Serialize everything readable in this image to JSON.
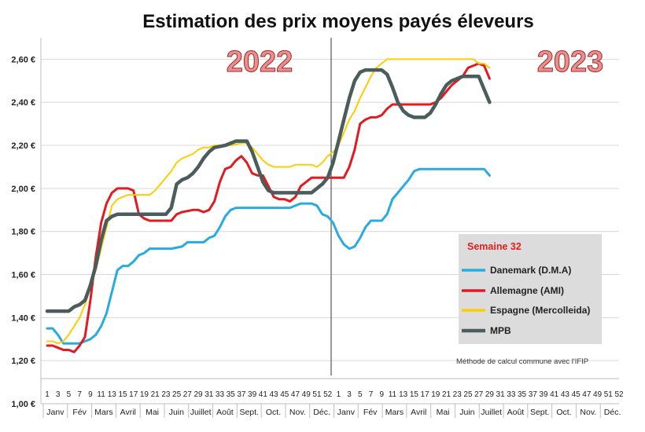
{
  "chart_data": {
    "type": "line",
    "title": "Estimation des prix moyens payés éleveurs",
    "year_labels": [
      "2022",
      "2023"
    ],
    "y_ticks": [
      "1,00 €",
      "1,20 €",
      "1,40 €",
      "1,60 €",
      "1,80 €",
      "2,00 €",
      "2,20 €",
      "2,40 €",
      "2,60 €"
    ],
    "ylim": [
      1.0,
      2.7
    ],
    "x_ticks": [
      "1",
      "3",
      "5",
      "7",
      "9",
      "11",
      "13",
      "15",
      "17",
      "19",
      "21",
      "23",
      "25",
      "27",
      "29",
      "31",
      "33",
      "35",
      "37",
      "39",
      "41",
      "43",
      "45",
      "47",
      "49",
      "51",
      "52",
      "1",
      "3",
      "5",
      "7",
      "9",
      "11",
      "13",
      "15",
      "17",
      "19",
      "21",
      "23",
      "25",
      "27",
      "29",
      "31",
      "33",
      "35",
      "37",
      "39",
      "41",
      "43",
      "45",
      "47",
      "49",
      "51",
      "52"
    ],
    "months": [
      "Janv",
      "Fév",
      "Mars",
      "Avril",
      "Mai",
      "Juin",
      "Juillet",
      "Août",
      "Sept.",
      "Oct.",
      "Nov.",
      "Déc.",
      "Janv",
      "Fév",
      "Mars",
      "Avril",
      "Mai",
      "Juin",
      "Juillet",
      "Août",
      "Sept.",
      "Oct.",
      "Nov.",
      "Déc."
    ],
    "legend": {
      "title": "Semaine 32",
      "items": [
        "Danemark (D.M.A)",
        "Allemagne (AMI)",
        "Espagne (Mercolleida)",
        "MPB"
      ]
    },
    "note": "Méthode de calcul commune avec l'IFIP",
    "series": [
      {
        "name": "Danemark (D.M.A)",
        "color": "#29abe2",
        "points": [
          [
            1,
            1.35
          ],
          [
            2,
            1.35
          ],
          [
            3,
            1.32
          ],
          [
            4,
            1.28
          ],
          [
            5,
            1.28
          ],
          [
            6,
            1.28
          ],
          [
            7,
            1.28
          ],
          [
            8,
            1.29
          ],
          [
            9,
            1.3
          ],
          [
            10,
            1.32
          ],
          [
            11,
            1.36
          ],
          [
            12,
            1.42
          ],
          [
            13,
            1.52
          ],
          [
            14,
            1.62
          ],
          [
            15,
            1.64
          ],
          [
            16,
            1.64
          ],
          [
            17,
            1.66
          ],
          [
            18,
            1.69
          ],
          [
            19,
            1.7
          ],
          [
            20,
            1.72
          ],
          [
            22,
            1.72
          ],
          [
            24,
            1.72
          ],
          [
            26,
            1.73
          ],
          [
            27,
            1.75
          ],
          [
            30,
            1.75
          ],
          [
            31,
            1.77
          ],
          [
            32,
            1.78
          ],
          [
            33,
            1.82
          ],
          [
            34,
            1.87
          ],
          [
            35,
            1.9
          ],
          [
            36,
            1.91
          ],
          [
            38,
            1.91
          ],
          [
            40,
            1.91
          ],
          [
            42,
            1.91
          ],
          [
            44,
            1.91
          ],
          [
            46,
            1.91
          ],
          [
            47,
            1.92
          ],
          [
            48,
            1.93
          ],
          [
            50,
            1.93
          ],
          [
            51,
            1.92
          ],
          [
            52,
            1.88
          ],
          [
            53,
            1.87
          ],
          [
            54,
            1.84
          ],
          [
            55,
            1.78
          ],
          [
            56,
            1.74
          ],
          [
            57,
            1.72
          ],
          [
            58,
            1.73
          ],
          [
            59,
            1.77
          ],
          [
            60,
            1.82
          ],
          [
            61,
            1.85
          ],
          [
            63,
            1.85
          ],
          [
            64,
            1.88
          ],
          [
            65,
            1.95
          ],
          [
            66,
            1.98
          ],
          [
            67,
            2.01
          ],
          [
            68,
            2.04
          ],
          [
            69,
            2.08
          ],
          [
            70,
            2.09
          ],
          [
            72,
            2.09
          ],
          [
            75,
            2.09
          ],
          [
            78,
            2.09
          ],
          [
            81,
            2.09
          ],
          [
            82,
            2.09
          ],
          [
            83,
            2.06
          ]
        ]
      },
      {
        "name": "Allemagne (AMI)",
        "color": "#e11b22",
        "points": [
          [
            1,
            1.27
          ],
          [
            2,
            1.27
          ],
          [
            3,
            1.26
          ],
          [
            4,
            1.25
          ],
          [
            5,
            1.25
          ],
          [
            6,
            1.24
          ],
          [
            7,
            1.27
          ],
          [
            8,
            1.31
          ],
          [
            9,
            1.48
          ],
          [
            10,
            1.68
          ],
          [
            11,
            1.84
          ],
          [
            12,
            1.93
          ],
          [
            13,
            1.98
          ],
          [
            14,
            2.0
          ],
          [
            15,
            2.0
          ],
          [
            16,
            2.0
          ],
          [
            17,
            1.99
          ],
          [
            18,
            1.88
          ],
          [
            19,
            1.86
          ],
          [
            20,
            1.85
          ],
          [
            22,
            1.85
          ],
          [
            24,
            1.85
          ],
          [
            25,
            1.88
          ],
          [
            26,
            1.89
          ],
          [
            28,
            1.9
          ],
          [
            29,
            1.9
          ],
          [
            30,
            1.89
          ],
          [
            31,
            1.9
          ],
          [
            32,
            1.94
          ],
          [
            33,
            2.03
          ],
          [
            34,
            2.09
          ],
          [
            35,
            2.1
          ],
          [
            36,
            2.13
          ],
          [
            37,
            2.15
          ],
          [
            38,
            2.12
          ],
          [
            39,
            2.07
          ],
          [
            40,
            2.06
          ],
          [
            41,
            2.06
          ],
          [
            42,
            2.01
          ],
          [
            43,
            1.96
          ],
          [
            44,
            1.95
          ],
          [
            45,
            1.95
          ],
          [
            46,
            1.94
          ],
          [
            47,
            1.96
          ],
          [
            48,
            2.01
          ],
          [
            49,
            2.03
          ],
          [
            50,
            2.05
          ],
          [
            51,
            2.05
          ],
          [
            52,
            2.05
          ],
          [
            54,
            2.05
          ],
          [
            55,
            2.05
          ],
          [
            56,
            2.05
          ],
          [
            57,
            2.1
          ],
          [
            58,
            2.18
          ],
          [
            59,
            2.3
          ],
          [
            60,
            2.32
          ],
          [
            61,
            2.33
          ],
          [
            62,
            2.33
          ],
          [
            63,
            2.34
          ],
          [
            64,
            2.37
          ],
          [
            65,
            2.39
          ],
          [
            66,
            2.39
          ],
          [
            68,
            2.39
          ],
          [
            70,
            2.39
          ],
          [
            72,
            2.39
          ],
          [
            73,
            2.4
          ],
          [
            74,
            2.42
          ],
          [
            75,
            2.45
          ],
          [
            76,
            2.48
          ],
          [
            77,
            2.5
          ],
          [
            78,
            2.52
          ],
          [
            79,
            2.56
          ],
          [
            80,
            2.57
          ],
          [
            81,
            2.58
          ],
          [
            82,
            2.57
          ],
          [
            83,
            2.51
          ]
        ]
      },
      {
        "name": "Espagne (Mercolleida)",
        "color": "#ffcc00",
        "points": [
          [
            1,
            1.29
          ],
          [
            2,
            1.29
          ],
          [
            3,
            1.28
          ],
          [
            4,
            1.29
          ],
          [
            5,
            1.32
          ],
          [
            6,
            1.36
          ],
          [
            7,
            1.4
          ],
          [
            8,
            1.46
          ],
          [
            9,
            1.54
          ],
          [
            10,
            1.62
          ],
          [
            11,
            1.72
          ],
          [
            12,
            1.82
          ],
          [
            13,
            1.92
          ],
          [
            14,
            1.95
          ],
          [
            15,
            1.96
          ],
          [
            16,
            1.97
          ],
          [
            18,
            1.97
          ],
          [
            20,
            1.97
          ],
          [
            21,
            1.99
          ],
          [
            22,
            2.02
          ],
          [
            23,
            2.05
          ],
          [
            24,
            2.08
          ],
          [
            25,
            2.12
          ],
          [
            26,
            2.14
          ],
          [
            27,
            2.15
          ],
          [
            28,
            2.16
          ],
          [
            29,
            2.18
          ],
          [
            30,
            2.19
          ],
          [
            31,
            2.19
          ],
          [
            32,
            2.2
          ],
          [
            33,
            2.2
          ],
          [
            35,
            2.2
          ],
          [
            37,
            2.21
          ],
          [
            38,
            2.21
          ],
          [
            39,
            2.19
          ],
          [
            40,
            2.16
          ],
          [
            41,
            2.13
          ],
          [
            42,
            2.11
          ],
          [
            43,
            2.1
          ],
          [
            44,
            2.1
          ],
          [
            46,
            2.1
          ],
          [
            47,
            2.11
          ],
          [
            50,
            2.11
          ],
          [
            51,
            2.1
          ],
          [
            52,
            2.12
          ],
          [
            53,
            2.15
          ],
          [
            54,
            2.17
          ],
          [
            55,
            2.2
          ],
          [
            56,
            2.26
          ],
          [
            57,
            2.32
          ],
          [
            58,
            2.36
          ],
          [
            59,
            2.42
          ],
          [
            60,
            2.47
          ],
          [
            61,
            2.52
          ],
          [
            62,
            2.56
          ],
          [
            63,
            2.58
          ],
          [
            64,
            2.6
          ],
          [
            66,
            2.6
          ],
          [
            68,
            2.6
          ],
          [
            70,
            2.6
          ],
          [
            72,
            2.6
          ],
          [
            74,
            2.6
          ],
          [
            76,
            2.6
          ],
          [
            78,
            2.6
          ],
          [
            80,
            2.6
          ],
          [
            81,
            2.58
          ],
          [
            82,
            2.58
          ],
          [
            83,
            2.56
          ]
        ]
      },
      {
        "name": "MPB",
        "color": "#4a5c5c",
        "points": [
          [
            1,
            1.43
          ],
          [
            2,
            1.43
          ],
          [
            3,
            1.43
          ],
          [
            4,
            1.43
          ],
          [
            5,
            1.43
          ],
          [
            6,
            1.45
          ],
          [
            7,
            1.46
          ],
          [
            8,
            1.48
          ],
          [
            9,
            1.55
          ],
          [
            10,
            1.64
          ],
          [
            11,
            1.76
          ],
          [
            12,
            1.85
          ],
          [
            13,
            1.87
          ],
          [
            14,
            1.88
          ],
          [
            16,
            1.88
          ],
          [
            18,
            1.88
          ],
          [
            19,
            1.88
          ],
          [
            20,
            1.88
          ],
          [
            22,
            1.88
          ],
          [
            23,
            1.88
          ],
          [
            24,
            1.91
          ],
          [
            25,
            2.02
          ],
          [
            26,
            2.04
          ],
          [
            27,
            2.05
          ],
          [
            28,
            2.07
          ],
          [
            29,
            2.1
          ],
          [
            30,
            2.14
          ],
          [
            31,
            2.17
          ],
          [
            32,
            2.19
          ],
          [
            34,
            2.2
          ],
          [
            36,
            2.22
          ],
          [
            37,
            2.22
          ],
          [
            38,
            2.22
          ],
          [
            39,
            2.17
          ],
          [
            40,
            2.1
          ],
          [
            41,
            2.03
          ],
          [
            42,
            1.99
          ],
          [
            43,
            1.98
          ],
          [
            44,
            1.98
          ],
          [
            46,
            1.98
          ],
          [
            48,
            1.98
          ],
          [
            50,
            1.98
          ],
          [
            51,
            2.0
          ],
          [
            52,
            2.02
          ],
          [
            53,
            2.05
          ],
          [
            54,
            2.12
          ],
          [
            55,
            2.22
          ],
          [
            56,
            2.32
          ],
          [
            57,
            2.42
          ],
          [
            58,
            2.5
          ],
          [
            59,
            2.54
          ],
          [
            60,
            2.55
          ],
          [
            61,
            2.55
          ],
          [
            62,
            2.55
          ],
          [
            63,
            2.55
          ],
          [
            64,
            2.53
          ],
          [
            65,
            2.47
          ],
          [
            66,
            2.4
          ],
          [
            67,
            2.36
          ],
          [
            68,
            2.34
          ],
          [
            69,
            2.33
          ],
          [
            71,
            2.33
          ],
          [
            72,
            2.35
          ],
          [
            73,
            2.39
          ],
          [
            74,
            2.44
          ],
          [
            75,
            2.48
          ],
          [
            76,
            2.5
          ],
          [
            77,
            2.51
          ],
          [
            78,
            2.52
          ],
          [
            80,
            2.52
          ],
          [
            81,
            2.52
          ],
          [
            82,
            2.46
          ],
          [
            83,
            2.4
          ]
        ]
      }
    ]
  }
}
